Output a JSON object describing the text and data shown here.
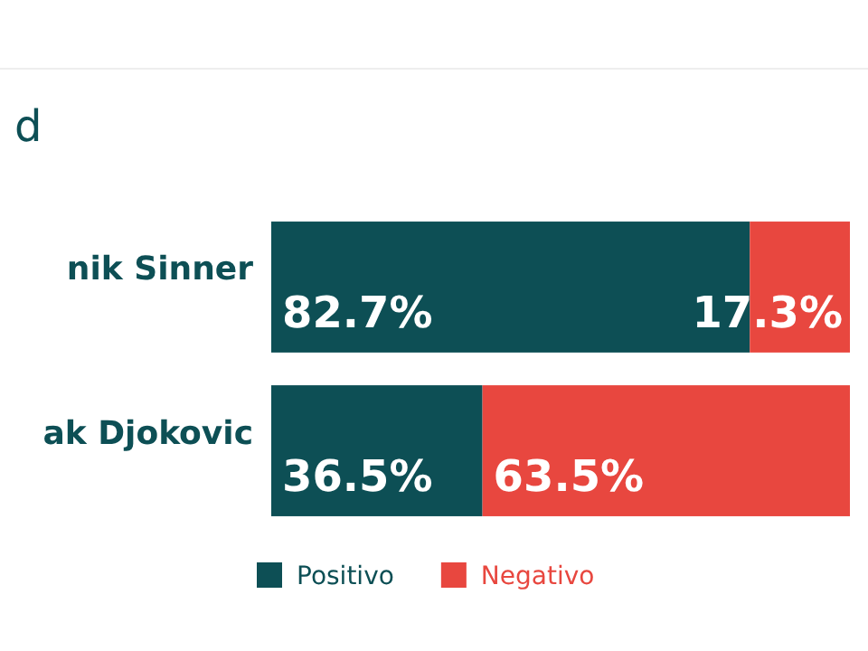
{
  "chart_data": {
    "type": "bar",
    "orientation": "horizontal",
    "stacked": true,
    "title": "d",
    "categories": [
      "nik Sinner",
      "ak Djokovic"
    ],
    "series": [
      {
        "name": "Positivo",
        "color": "#0d4f55",
        "values": [
          82.7,
          36.5
        ],
        "value_labels": [
          "82.7%",
          "36.5%"
        ]
      },
      {
        "name": "Negativo",
        "color": "#e8473f",
        "values": [
          17.3,
          63.5
        ],
        "value_labels": [
          "17.3%",
          "63.5%"
        ]
      }
    ],
    "xlim": [
      0,
      100
    ],
    "legend": "bottom"
  }
}
